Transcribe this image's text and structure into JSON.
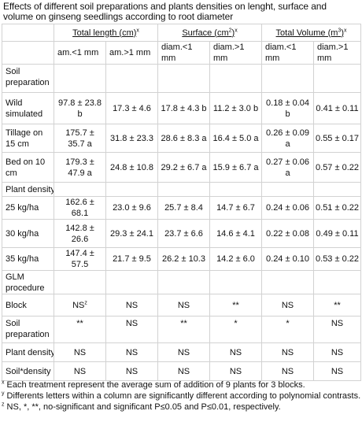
{
  "title": "Effects of different soil preparations and plants densities on lenght, surface and volume on ginseng seedlings according to root diameter",
  "headers": {
    "total_length": "Total length (cm)",
    "total_length_mark": "x",
    "surface": "Surface (cm",
    "surface_exp": "2",
    "surface_close": ")",
    "surface_mark": "x",
    "total_volume": "Total Volume (m",
    "total_volume_exp": "3",
    "total_volume_close": ")",
    "total_volume_mark": "x"
  },
  "subheaders": [
    "am.<1 mm",
    "am.>1 mm",
    "diam.<1 mm",
    "diam.>1 mm",
    "diam.<1 mm",
    "diam.>1 mm"
  ],
  "sections": {
    "soil_preparation": "Soil preparation",
    "plant_density": "Plant density",
    "glm": "GLM procedure"
  },
  "soil_rows": [
    {
      "label": "Wild simulated",
      "values": [
        "97.8 ± 23.8 b",
        "17.3 ± 4.6",
        "17.8 ± 4.3 b",
        "11.2 ± 3.0 b",
        "0.18 ± 0.04 b",
        "0.41 ± 0.11"
      ]
    },
    {
      "label": "Tillage on 15 cm",
      "values": [
        "175.7 ± 35.7 a",
        "31.8 ± 23.3",
        "28.6 ± 8.3 a",
        "16.4 ± 5.0 a",
        "0.26 ± 0.09 a",
        "0.55 ± 0.17"
      ]
    },
    {
      "label": "Bed on 10 cm",
      "values": [
        "179.3 ± 47.9 a",
        "24.8 ± 10.8",
        "29.2 ± 6.7 a",
        "15.9 ± 6.7 a",
        "0.27 ± 0.06 a",
        "0.57 ± 0.22"
      ]
    }
  ],
  "density_rows": [
    {
      "label": "25 kg/ha",
      "values": [
        "162.6 ± 68.1",
        "23.0 ± 9.6",
        "25.7 ± 8.4",
        "14.7 ± 6.7",
        "0.24 ± 0.06",
        "0.51 ± 0.22"
      ]
    },
    {
      "label": "30 kg/ha",
      "values": [
        "142.8 ± 26.6",
        "29.3 ± 24.1",
        "23.7 ± 6.6",
        "14.6 ± 4.1",
        "0.22 ± 0.08",
        "0.49 ± 0.11"
      ]
    },
    {
      "label": "35 kg/ha",
      "values": [
        "147.4 ± 57.5",
        "21.7 ± 9.5",
        "26.2 ± 10.3",
        "14.2 ± 6.0",
        "0.24 ± 0.10",
        "0.53 ± 0.22"
      ]
    }
  ],
  "glm_rows": [
    {
      "label": "Block",
      "values": [
        "NS",
        "NS",
        "NS",
        "**",
        "NS",
        "**"
      ],
      "first_mark": "z"
    },
    {
      "label": "Soil preparation",
      "values": [
        "**",
        "NS",
        "**",
        "*",
        "*",
        "NS"
      ]
    },
    {
      "label": "Plant density",
      "values": [
        "NS",
        "NS",
        "NS",
        "NS",
        "NS",
        "NS"
      ]
    },
    {
      "label": "Soil*density",
      "values": [
        "NS",
        "NS",
        "NS",
        "NS",
        "NS",
        "NS"
      ]
    }
  ],
  "footnotes": [
    {
      "mark": "x",
      "text": " Each treatment represent the average sum of addition of 9 plants for 3 blocks."
    },
    {
      "mark": "y",
      "text": " Differents letters within a column are significantly different according to polynomial contrasts."
    },
    {
      "mark": "z",
      "text": " NS, *, **, no-significant and significant P≤0.05 and P≤0.01, respectively."
    }
  ]
}
